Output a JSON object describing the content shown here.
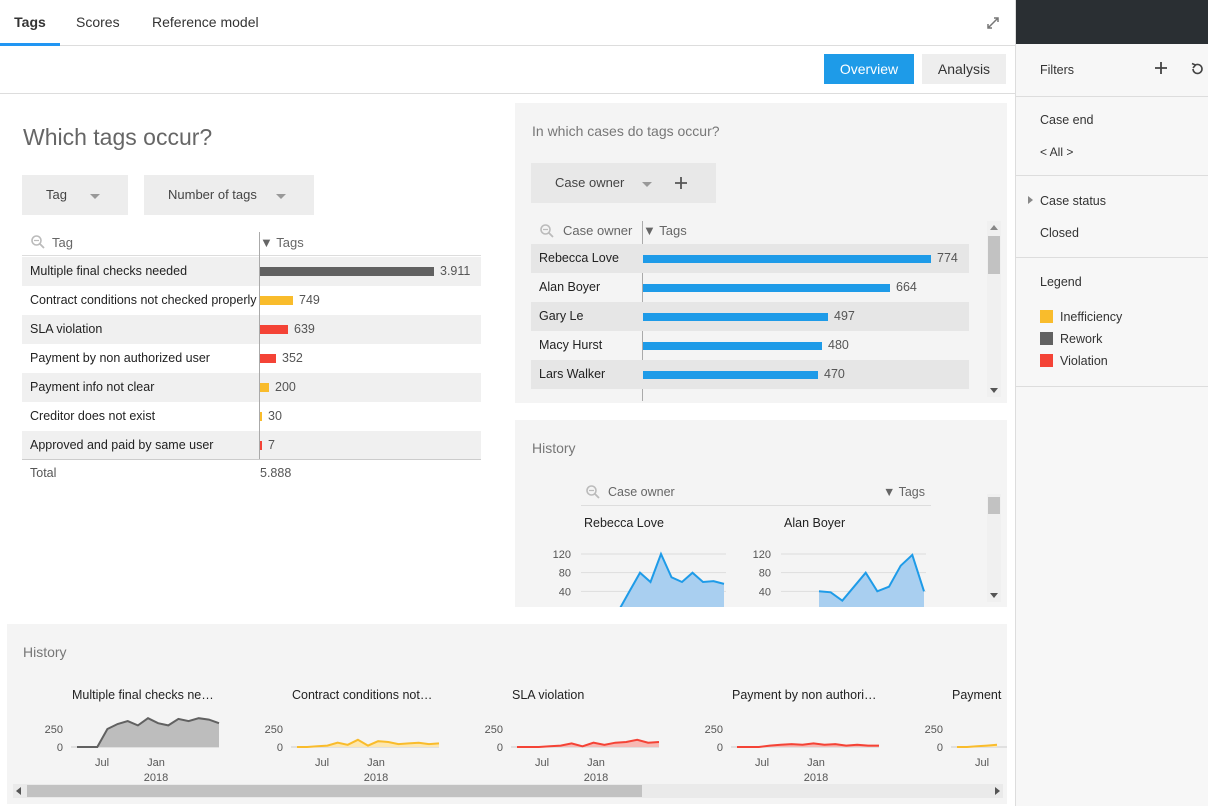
{
  "tabs": [
    "Tags",
    "Scores",
    "Reference model"
  ],
  "views": {
    "overview": "Overview",
    "analysis": "Analysis"
  },
  "left": {
    "title": "Which tags occur?",
    "dropdown1": "Tag",
    "dropdown2": "Number of tags",
    "col_tag": "Tag",
    "col_tags": "▼ Tags",
    "rows": [
      {
        "label": "Multiple final checks needed",
        "value": "3.911",
        "num": 3911,
        "color": "#616161"
      },
      {
        "label": "Contract conditions not checked properly",
        "value": "749",
        "num": 749,
        "color": "#f9bc2c"
      },
      {
        "label": "SLA violation",
        "value": "639",
        "num": 639,
        "color": "#f44336"
      },
      {
        "label": "Payment by non authorized user",
        "value": "352",
        "num": 352,
        "color": "#f44336"
      },
      {
        "label": "Payment info not clear",
        "value": "200",
        "num": 200,
        "color": "#f9bc2c"
      },
      {
        "label": "Creditor does not exist",
        "value": "30",
        "num": 30,
        "color": "#f9bc2c"
      },
      {
        "label": "Approved and paid by same user",
        "value": "7",
        "num": 7,
        "color": "#f44336"
      }
    ],
    "total_label": "Total",
    "total_value": "5.888"
  },
  "cases": {
    "title": "In which cases do tags occur?",
    "dropdown": "Case owner",
    "col_owner": "Case owner",
    "col_tags": "▼ Tags",
    "rows": [
      {
        "label": "Rebecca Love",
        "value": "774",
        "num": 774
      },
      {
        "label": "Alan Boyer",
        "value": "664",
        "num": 664
      },
      {
        "label": "Gary Le",
        "value": "497",
        "num": 497
      },
      {
        "label": "Macy Hurst",
        "value": "480",
        "num": 480
      },
      {
        "label": "Lars Walker",
        "value": "470",
        "num": 470
      }
    ]
  },
  "history_owner": {
    "title": "History",
    "col_owner": "Case owner",
    "col_tags": "▼ Tags",
    "charts": [
      {
        "name": "Rebecca Love",
        "y": [
          0,
          40,
          80,
          60,
          120,
          70,
          60,
          80,
          60,
          62,
          56
        ],
        "ticks": [
          "120",
          "80",
          "40"
        ]
      },
      {
        "name": "Alan Boyer",
        "y": [
          40,
          38,
          20,
          50,
          80,
          40,
          50,
          95,
          118,
          40
        ],
        "ticks": [
          "120",
          "80",
          "40"
        ]
      }
    ]
  },
  "history_tags": {
    "title": "History",
    "charts": [
      {
        "name": "Multiple final checks ne…",
        "color": "#616161",
        "fill": "#bdbdbd",
        "y": [
          0,
          0,
          0,
          250,
          320,
          360,
          300,
          400,
          330,
          300,
          390,
          360,
          400,
          380,
          330
        ]
      },
      {
        "name": "Contract conditions not…",
        "color": "#f9bc2c",
        "fill": "#fde7b0",
        "y": [
          0,
          0,
          10,
          20,
          60,
          30,
          100,
          20,
          80,
          70,
          40,
          50,
          60,
          40,
          50
        ]
      },
      {
        "name": "SLA violation",
        "color": "#f44336",
        "fill": "#f7b8b3",
        "y": [
          0,
          0,
          0,
          10,
          20,
          50,
          10,
          60,
          30,
          60,
          70,
          100,
          60,
          70
        ]
      },
      {
        "name": "Payment by non authori…",
        "color": "#f44336",
        "fill": "#f7b8b3",
        "y": [
          0,
          0,
          0,
          20,
          30,
          40,
          30,
          50,
          30,
          40,
          20,
          30,
          20,
          20
        ]
      },
      {
        "name": "Payment",
        "color": "#f9bc2c",
        "fill": "#fde7b0",
        "y": [
          0,
          0,
          10,
          20,
          30
        ]
      }
    ],
    "y_ticks": [
      "250",
      "0"
    ],
    "x_ticks": [
      "Jul",
      "Jan"
    ],
    "year": "2018"
  },
  "sidebar": {
    "filters": "Filters",
    "case_end": "Case end",
    "case_end_value": "< All >",
    "case_status": "Case status",
    "case_status_value": "Closed",
    "legend": "Legend",
    "legend_items": [
      {
        "label": "Inefficiency",
        "color": "#f9bc2c"
      },
      {
        "label": "Rework",
        "color": "#616161"
      },
      {
        "label": "Violation",
        "color": "#f44336"
      }
    ]
  }
}
